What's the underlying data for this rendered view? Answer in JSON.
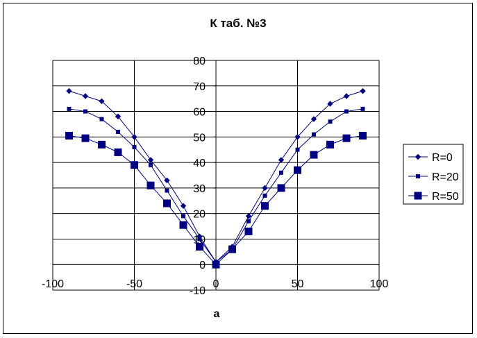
{
  "chart_data": {
    "type": "line",
    "title": "К таб. №3",
    "xlabel": "a",
    "ylabel": "",
    "xlim": [
      -100,
      100
    ],
    "ylim": [
      -10,
      80
    ],
    "x_ticks": [
      -100,
      -50,
      0,
      50,
      100
    ],
    "y_ticks": [
      -10,
      0,
      10,
      20,
      30,
      40,
      50,
      60,
      70,
      80
    ],
    "grid": "horizontal and vertical major gridlines",
    "legend": "right",
    "x": [
      -90,
      -80,
      -70,
      -60,
      -50,
      -40,
      -30,
      -20,
      -10,
      0,
      10,
      20,
      30,
      40,
      50,
      60,
      70,
      80,
      90
    ],
    "series": [
      {
        "name": "R=0",
        "marker": "diamond",
        "color": "#000080",
        "values": [
          68,
          66,
          64,
          58,
          50,
          41,
          33,
          23,
          11,
          1,
          7,
          19,
          30,
          41,
          50,
          57,
          63,
          66,
          68
        ]
      },
      {
        "name": "R=20",
        "marker": "small-square",
        "color": "#000080",
        "values": [
          61,
          60,
          57,
          52,
          46,
          39,
          29,
          19,
          10,
          1,
          6,
          17,
          27,
          36,
          45,
          51,
          56,
          60,
          61
        ]
      },
      {
        "name": "R=50",
        "marker": "large-square",
        "color": "#000080",
        "values": [
          50.5,
          49.5,
          47,
          44,
          39,
          31,
          24,
          15.5,
          7,
          0,
          6,
          13,
          23,
          30,
          37,
          43,
          47,
          49.5,
          50.5
        ]
      }
    ]
  }
}
